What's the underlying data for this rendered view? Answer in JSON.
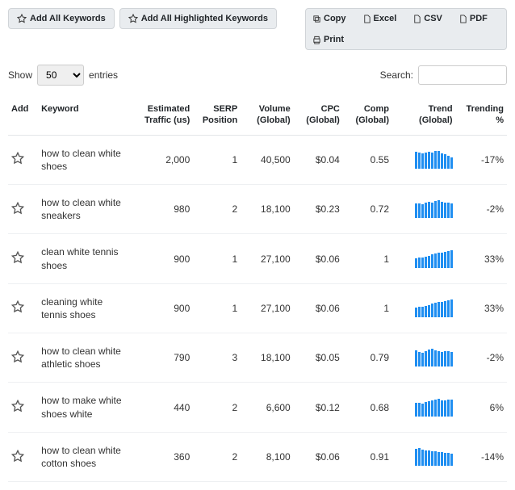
{
  "toolbar": {
    "add_all_label": "Add All Keywords",
    "add_all_highlighted_label": "Add All Highlighted Keywords"
  },
  "export": {
    "copy": "Copy",
    "excel": "Excel",
    "csv": "CSV",
    "pdf": "PDF",
    "print": "Print"
  },
  "controls": {
    "show_label": "Show",
    "entries_label": "entries",
    "page_size": "50",
    "search_label": "Search:",
    "search_value": ""
  },
  "columns": {
    "add": "Add",
    "keyword": "Keyword",
    "traffic_l1": "Estimated",
    "traffic_l2": "Traffic (us)",
    "serp_l1": "SERP",
    "serp_l2": "Position",
    "volume_l1": "Volume",
    "volume_l2": "(Global)",
    "cpc_l1": "CPC",
    "cpc_l2": "(Global)",
    "comp_l1": "Comp",
    "comp_l2": "(Global)",
    "trend_l1": "Trend",
    "trend_l2": "(Global)",
    "trending_l1": "Trending",
    "trending_l2": "%"
  },
  "spark_color": "#1f8ef1",
  "rows": [
    {
      "keyword": "how to clean white shoes",
      "traffic": "2,000",
      "serp": "1",
      "volume": "40,500",
      "cpc": "$0.04",
      "comp": "0.55",
      "trending": "-17%",
      "spark": [
        95,
        90,
        85,
        92,
        95,
        90,
        100,
        98,
        88,
        80,
        72,
        65
      ]
    },
    {
      "keyword": "how to clean white sneakers",
      "traffic": "980",
      "serp": "2",
      "volume": "18,100",
      "cpc": "$0.23",
      "comp": "0.72",
      "trending": "-2%",
      "spark": [
        80,
        82,
        78,
        85,
        90,
        88,
        95,
        100,
        92,
        88,
        85,
        83
      ]
    },
    {
      "keyword": "clean white tennis shoes",
      "traffic": "900",
      "serp": "1",
      "volume": "27,100",
      "cpc": "$0.06",
      "comp": "1",
      "trending": "33%",
      "spark": [
        55,
        58,
        60,
        62,
        70,
        75,
        80,
        85,
        88,
        92,
        95,
        100
      ]
    },
    {
      "keyword": "cleaning white tennis shoes",
      "traffic": "900",
      "serp": "1",
      "volume": "27,100",
      "cpc": "$0.06",
      "comp": "1",
      "trending": "33%",
      "spark": [
        55,
        58,
        60,
        62,
        70,
        75,
        80,
        85,
        88,
        92,
        95,
        100
      ]
    },
    {
      "keyword": "how to clean white athletic shoes",
      "traffic": "790",
      "serp": "3",
      "volume": "18,100",
      "cpc": "$0.05",
      "comp": "0.79",
      "trending": "-2%",
      "spark": [
        90,
        80,
        75,
        85,
        95,
        100,
        92,
        88,
        84,
        86,
        85,
        83
      ]
    },
    {
      "keyword": "how to make white shoes white",
      "traffic": "440",
      "serp": "2",
      "volume": "6,600",
      "cpc": "$0.12",
      "comp": "0.68",
      "trending": "6%",
      "spark": [
        75,
        78,
        72,
        80,
        85,
        90,
        95,
        100,
        92,
        90,
        94,
        96
      ]
    },
    {
      "keyword": "how to clean white cotton shoes",
      "traffic": "360",
      "serp": "2",
      "volume": "8,100",
      "cpc": "$0.06",
      "comp": "0.91",
      "trending": "-14%",
      "spark": [
        95,
        100,
        90,
        85,
        88,
        82,
        80,
        78,
        76,
        74,
        72,
        70
      ]
    }
  ]
}
